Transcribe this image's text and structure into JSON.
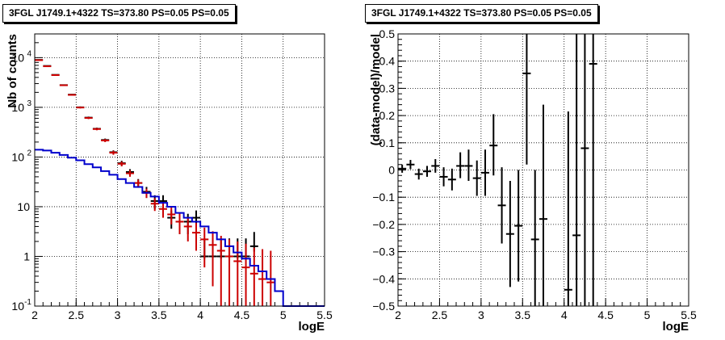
{
  "chart_data": [
    {
      "type": "scatter",
      "title": "3FGL J1749.1+4322 TS=373.80 PS=0.05 PS=0.05",
      "xlabel": "logE",
      "ylabel": "Nb of counts",
      "xlim": [
        2,
        5.5
      ],
      "ylim": [
        0.1,
        30000
      ],
      "yscale": "log",
      "grid": true,
      "x_ticks": [
        "2",
        "2.5",
        "3",
        "3.5",
        "4",
        "4.5",
        "5",
        "5.5"
      ],
      "y_ticks": [
        {
          "value": 0.1,
          "label": "10",
          "sup": "-1"
        },
        {
          "value": 1,
          "label": "1",
          "sup": ""
        },
        {
          "value": 10,
          "label": "10",
          "sup": ""
        },
        {
          "value": 100,
          "label": "10",
          "sup": "2"
        },
        {
          "value": 1000,
          "label": "10",
          "sup": "3"
        },
        {
          "value": 10000,
          "label": "10",
          "sup": "4"
        }
      ],
      "series": [
        {
          "color": "#000000",
          "kind": "points",
          "x": [
            2.05,
            2.15,
            2.25,
            2.35,
            2.45,
            2.55,
            2.65,
            2.75,
            2.85,
            2.95,
            3.05,
            3.15,
            3.25,
            3.35,
            3.45,
            3.55,
            3.65,
            3.75,
            3.85,
            3.95,
            4.05,
            4.15,
            4.25,
            4.35,
            4.45,
            4.55,
            4.65
          ],
          "y": [
            9000,
            6800,
            4500,
            2800,
            1800,
            1000,
            620,
            370,
            220,
            125,
            75,
            50,
            30,
            20,
            13,
            13,
            6,
            5,
            5,
            6,
            1,
            1,
            1,
            1,
            1,
            1,
            1.6
          ],
          "err_low": [
            8900,
            6720,
            4430,
            2740,
            1750,
            960,
            590,
            350,
            205,
            114,
            66,
            43,
            24,
            15,
            9,
            9,
            3.6,
            2.8,
            2.8,
            3.6,
            0.9,
            0.9,
            0.9,
            0.9,
            0.9,
            0.9,
            1.25
          ],
          "err_high": [
            9100,
            6880,
            4570,
            2860,
            1850,
            1040,
            650,
            390,
            235,
            136,
            84,
            57,
            36,
            25,
            17,
            17,
            8.4,
            7.2,
            7.2,
            8.4,
            2.3,
            2.3,
            2.3,
            2.3,
            2.3,
            2.3,
            3.1
          ]
        },
        {
          "color": "#cc0000",
          "kind": "points",
          "x": [
            2.05,
            2.15,
            2.25,
            2.35,
            2.45,
            2.55,
            2.65,
            2.75,
            2.85,
            2.95,
            3.05,
            3.15,
            3.25,
            3.35,
            3.45,
            3.55,
            3.65,
            3.75,
            3.85,
            3.95,
            4.05,
            4.15,
            4.25,
            4.35,
            4.45,
            4.55,
            4.65,
            4.75,
            4.85
          ],
          "y": [
            8900,
            6700,
            4450,
            2780,
            1780,
            990,
            610,
            365,
            215,
            122,
            73,
            47,
            30,
            19,
            11.5,
            9,
            7,
            5,
            4,
            3,
            2.2,
            1.7,
            1.3,
            1.0,
            0.8,
            0.6,
            0.45,
            0.35,
            0.3
          ],
          "err_low": [
            8800,
            6620,
            4380,
            2720,
            1730,
            950,
            580,
            345,
            200,
            111,
            65,
            40,
            25,
            15,
            8.2,
            6.0,
            4.4,
            2.8,
            2.0,
            1.3,
            0.6,
            0.25,
            0.1,
            0.1,
            0.1,
            0.1,
            0.1,
            0.1,
            0.1
          ],
          "err_high": [
            9000,
            6780,
            4520,
            2840,
            1830,
            1030,
            640,
            385,
            230,
            133,
            81,
            54,
            35,
            23,
            14.8,
            12,
            9.6,
            7.2,
            6.0,
            4.7,
            3.8,
            3.2,
            2.6,
            2.2,
            2.0,
            1.8,
            1.5,
            1.4,
            1.3
          ]
        },
        {
          "color": "#0000cc",
          "kind": "step",
          "edges": [
            2.0,
            2.1,
            2.2,
            2.3,
            2.4,
            2.5,
            2.6,
            2.7,
            2.8,
            2.9,
            3.0,
            3.1,
            3.2,
            3.3,
            3.4,
            3.5,
            3.6,
            3.7,
            3.8,
            3.9,
            4.0,
            4.1,
            4.2,
            4.3,
            4.4,
            4.5,
            4.6,
            4.7,
            4.8,
            4.9,
            5.0,
            5.5
          ],
          "values": [
            140,
            135,
            122,
            110,
            97,
            86,
            72,
            62,
            52,
            44,
            36,
            30,
            25,
            19,
            16,
            12,
            10,
            7.5,
            6,
            5,
            4,
            3,
            2.2,
            1.6,
            1.2,
            0.9,
            0.65,
            0.5,
            0.35,
            0.2,
            0.1
          ]
        }
      ]
    },
    {
      "type": "scatter",
      "title": "3FGL J1749.1+4322 TS=373.80 PS=0.05 PS=0.05",
      "xlabel": "logE",
      "ylabel": "(data-model)/model",
      "xlim": [
        2,
        5.5
      ],
      "ylim": [
        -0.5,
        0.5
      ],
      "grid": true,
      "x_ticks": [
        "2",
        "2.5",
        "3",
        "3.5",
        "4",
        "4.5",
        "5",
        "5.5"
      ],
      "y_ticks": [
        "−0.5",
        "−0.4",
        "−0.3",
        "−0.2",
        "−0.1",
        "0",
        "0.1",
        "0.2",
        "0.3",
        "0.4",
        "0.5"
      ],
      "series": [
        {
          "color": "#000000",
          "kind": "points",
          "x": [
            2.05,
            2.15,
            2.25,
            2.35,
            2.45,
            2.55,
            2.65,
            2.75,
            2.85,
            2.95,
            3.05,
            3.15,
            3.25,
            3.35,
            3.45,
            3.55,
            3.65,
            3.75,
            4.05,
            4.15,
            4.25,
            4.35
          ],
          "y": [
            0.005,
            0.02,
            -0.015,
            -0.005,
            0.015,
            -0.025,
            -0.035,
            0.015,
            0.015,
            -0.03,
            -0.01,
            0.09,
            -0.13,
            -0.235,
            -0.205,
            0.355,
            -0.255,
            -0.18,
            -0.44,
            -0.24,
            0.08,
            0.39
          ],
          "err_low": [
            -0.01,
            0.003,
            -0.035,
            -0.025,
            -0.01,
            -0.06,
            -0.075,
            -0.03,
            -0.04,
            -0.095,
            -0.095,
            -0.02,
            -0.27,
            -0.43,
            -0.41,
            0.02,
            -0.6,
            -0.6,
            -0.6,
            -0.6,
            -0.6,
            -0.6
          ],
          "err_high": [
            0.02,
            0.037,
            0.005,
            0.015,
            0.04,
            0.01,
            0.005,
            0.065,
            0.075,
            0.035,
            0.075,
            0.205,
            0.01,
            -0.04,
            0.0,
            0.5,
            0.0,
            0.24,
            0.215,
            0.5,
            0.5,
            0.5
          ]
        }
      ]
    }
  ]
}
